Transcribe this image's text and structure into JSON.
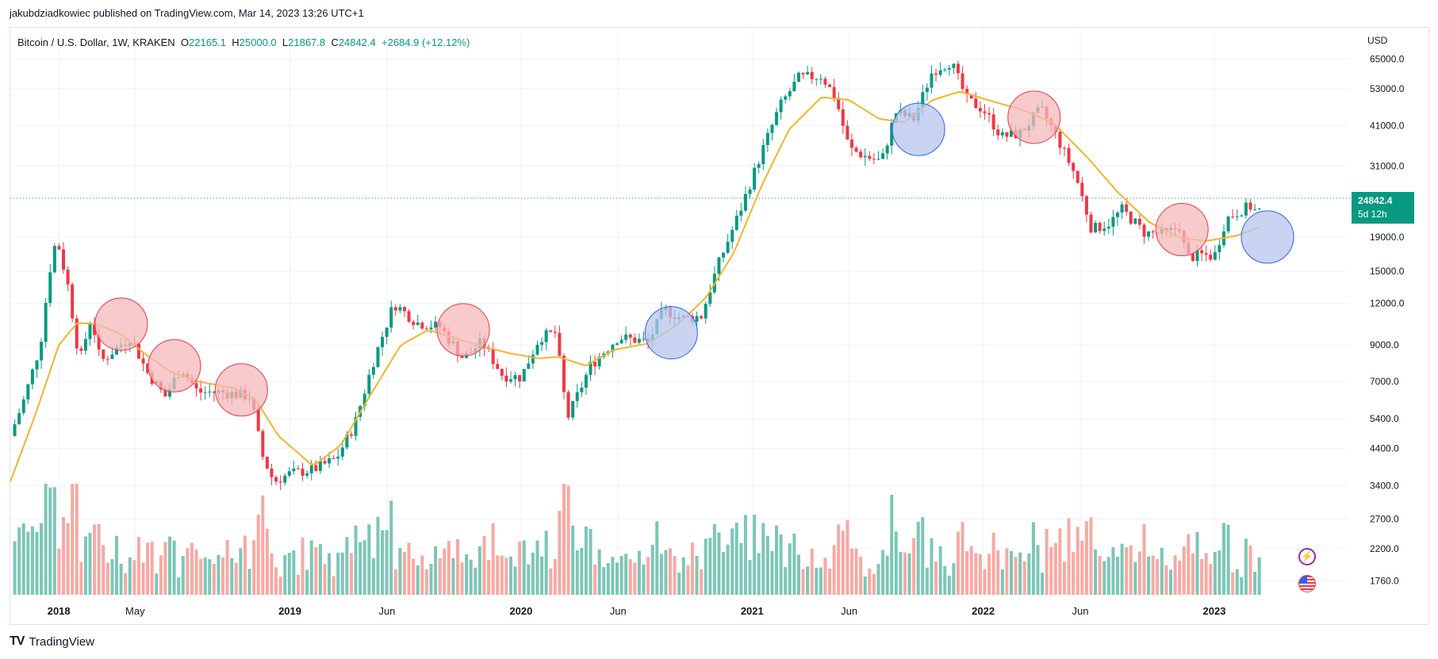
{
  "publisher_line": "jakubdziadkowiec published on TradingView.com, Mar 14, 2023 13:26 UTC+1",
  "legend": {
    "symbol": "Bitcoin / U.S. Dollar, 1W, KRAKEN",
    "open_label": "O",
    "open": "22165.1",
    "high_label": "H",
    "high": "25000.0",
    "low_label": "L",
    "low": "21867.8",
    "close_label": "C",
    "close": "24842.4",
    "change": "+2684.9 (+12.12%)"
  },
  "axis": {
    "currency": "USD"
  },
  "last_price": {
    "value": "24842.4",
    "countdown": "5d 12h"
  },
  "brand": {
    "logo_text": "TV",
    "name": "TradingView"
  },
  "icons": [
    "flash-icon",
    "us-flag-icon"
  ],
  "colors": {
    "up": "#089981",
    "down": "#f23645",
    "ma": "#f7b32b",
    "volume_up": "#7cc6b6",
    "volume_down": "#f7a9a3",
    "circle_red_fill": "#f4b8bb",
    "circle_blue_fill": "#b7c6ef"
  },
  "chart_data": {
    "type": "candlestick",
    "title": "Bitcoin / U.S. Dollar, 1W, KRAKEN",
    "y_scale": "log",
    "ylim": [
      1600,
      72000
    ],
    "y_ticks": [
      "65000.0",
      "53000.0",
      "41000.0",
      "31000.0",
      "19000.0",
      "15000.0",
      "12000.0",
      "9000.0",
      "7000.0",
      "5400.0",
      "4400.0",
      "3400.0",
      "2700.0",
      "2200.0",
      "1760.0"
    ],
    "x_ticks": [
      {
        "label": "2018",
        "date": 2018.0,
        "bold": true
      },
      {
        "label": "May",
        "date": 2018.33
      },
      {
        "label": "2019",
        "date": 2019.0,
        "bold": true
      },
      {
        "label": "Jun",
        "date": 2019.42
      },
      {
        "label": "2020",
        "date": 2020.0,
        "bold": true
      },
      {
        "label": "Jun",
        "date": 2020.42
      },
      {
        "label": "2021",
        "date": 2021.0,
        "bold": true
      },
      {
        "label": "Jun",
        "date": 2021.42
      },
      {
        "label": "2022",
        "date": 2022.0,
        "bold": true
      },
      {
        "label": "Jun",
        "date": 2022.42
      },
      {
        "label": "2023",
        "date": 2023.0,
        "bold": true
      }
    ],
    "x_range": [
      2017.79,
      2023.58
    ],
    "price_path": [
      [
        2017.79,
        4800
      ],
      [
        2017.85,
        6200
      ],
      [
        2017.92,
        9000
      ],
      [
        2017.96,
        15000
      ],
      [
        2017.99,
        19000
      ],
      [
        2018.04,
        13500
      ],
      [
        2018.09,
        8000
      ],
      [
        2018.14,
        11000
      ],
      [
        2018.18,
        8000
      ],
      [
        2018.24,
        8700
      ],
      [
        2018.31,
        9500
      ],
      [
        2018.38,
        7500
      ],
      [
        2018.46,
        6300
      ],
      [
        2018.53,
        7700
      ],
      [
        2018.6,
        6500
      ],
      [
        2018.7,
        6500
      ],
      [
        2018.83,
        6300
      ],
      [
        2018.88,
        4200
      ],
      [
        2018.93,
        3500
      ],
      [
        2019.0,
        3700
      ],
      [
        2019.1,
        3800
      ],
      [
        2019.2,
        4100
      ],
      [
        2019.28,
        5200
      ],
      [
        2019.36,
        8000
      ],
      [
        2019.45,
        12000
      ],
      [
        2019.55,
        10500
      ],
      [
        2019.65,
        10200
      ],
      [
        2019.75,
        8200
      ],
      [
        2019.83,
        9200
      ],
      [
        2019.92,
        7300
      ],
      [
        2020.0,
        7200
      ],
      [
        2020.08,
        9500
      ],
      [
        2020.15,
        9800
      ],
      [
        2020.2,
        5400
      ],
      [
        2020.3,
        7800
      ],
      [
        2020.42,
        9500
      ],
      [
        2020.55,
        9200
      ],
      [
        2020.62,
        11500
      ],
      [
        2020.7,
        10800
      ],
      [
        2020.78,
        11000
      ],
      [
        2020.85,
        15500
      ],
      [
        2020.95,
        23000
      ],
      [
        2021.04,
        34000
      ],
      [
        2021.12,
        47000
      ],
      [
        2021.2,
        57000
      ],
      [
        2021.3,
        58000
      ],
      [
        2021.36,
        50000
      ],
      [
        2021.42,
        35000
      ],
      [
        2021.5,
        33000
      ],
      [
        2021.56,
        32000
      ],
      [
        2021.62,
        45000
      ],
      [
        2021.7,
        43000
      ],
      [
        2021.78,
        60000
      ],
      [
        2021.86,
        64000
      ],
      [
        2021.93,
        49000
      ],
      [
        2022.0,
        46000
      ],
      [
        2022.08,
        38000
      ],
      [
        2022.16,
        39000
      ],
      [
        2022.25,
        46000
      ],
      [
        2022.31,
        39000
      ],
      [
        2022.4,
        29000
      ],
      [
        2022.47,
        20000
      ],
      [
        2022.55,
        21000
      ],
      [
        2022.6,
        23000
      ],
      [
        2022.7,
        19500
      ],
      [
        2022.8,
        19500
      ],
      [
        2022.85,
        20500
      ],
      [
        2022.88,
        16500
      ],
      [
        2022.95,
        16800
      ],
      [
        2023.0,
        16600
      ],
      [
        2023.05,
        21500
      ],
      [
        2023.12,
        23000
      ],
      [
        2023.16,
        23500
      ],
      [
        2023.19,
        22165
      ],
      [
        2023.21,
        24842
      ]
    ],
    "moving_average": {
      "name": "MA",
      "points": [
        [
          2017.79,
          3500
        ],
        [
          2017.9,
          5600
        ],
        [
          2018.0,
          9000
        ],
        [
          2018.08,
          10500
        ],
        [
          2018.16,
          10400
        ],
        [
          2018.26,
          9800
        ],
        [
          2018.36,
          8600
        ],
        [
          2018.48,
          7500
        ],
        [
          2018.6,
          7000
        ],
        [
          2018.75,
          6700
        ],
        [
          2018.85,
          6200
        ],
        [
          2018.95,
          4800
        ],
        [
          2019.1,
          3900
        ],
        [
          2019.22,
          4500
        ],
        [
          2019.35,
          6400
        ],
        [
          2019.48,
          9000
        ],
        [
          2019.6,
          10000
        ],
        [
          2019.72,
          9400
        ],
        [
          2019.84,
          8900
        ],
        [
          2019.95,
          8500
        ],
        [
          2020.08,
          8200
        ],
        [
          2020.16,
          8300
        ],
        [
          2020.28,
          7800
        ],
        [
          2020.4,
          8700
        ],
        [
          2020.55,
          9100
        ],
        [
          2020.68,
          10400
        ],
        [
          2020.8,
          12500
        ],
        [
          2020.92,
          17000
        ],
        [
          2021.04,
          27000
        ],
        [
          2021.16,
          40000
        ],
        [
          2021.3,
          50000
        ],
        [
          2021.42,
          49000
        ],
        [
          2021.55,
          43000
        ],
        [
          2021.66,
          42000
        ],
        [
          2021.78,
          49000
        ],
        [
          2021.9,
          52000
        ],
        [
          2022.02,
          49000
        ],
        [
          2022.16,
          46000
        ],
        [
          2022.3,
          42000
        ],
        [
          2022.45,
          33000
        ],
        [
          2022.58,
          26000
        ],
        [
          2022.72,
          21000
        ],
        [
          2022.86,
          18800
        ],
        [
          2022.97,
          18500
        ],
        [
          2023.1,
          19200
        ],
        [
          2023.21,
          20500
        ]
      ]
    },
    "annotations": [
      {
        "shape": "circle",
        "color": "red",
        "date": 2018.27,
        "price": 10400
      },
      {
        "shape": "circle",
        "color": "red",
        "date": 2018.5,
        "price": 7800
      },
      {
        "shape": "circle",
        "color": "red",
        "date": 2018.79,
        "price": 6600
      },
      {
        "shape": "circle",
        "color": "red",
        "date": 2019.75,
        "price": 10000
      },
      {
        "shape": "circle",
        "color": "blue",
        "date": 2020.65,
        "price": 9800
      },
      {
        "shape": "circle",
        "color": "blue",
        "date": 2021.72,
        "price": 40000
      },
      {
        "shape": "circle",
        "color": "red",
        "date": 2022.22,
        "price": 43500
      },
      {
        "shape": "circle",
        "color": "red",
        "date": 2022.86,
        "price": 20000
      },
      {
        "shape": "circle",
        "color": "blue",
        "date": 2023.23,
        "price": 19000
      }
    ],
    "last_price_line": 24842.4
  }
}
